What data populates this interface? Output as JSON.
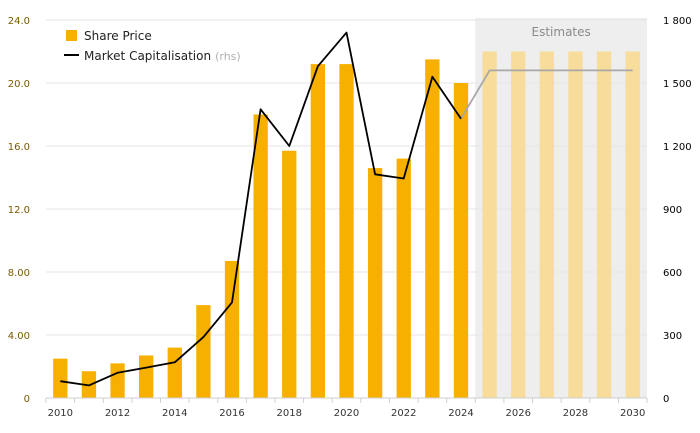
{
  "chart_data": {
    "type": "bar",
    "x": [
      2010,
      2011,
      2012,
      2013,
      2014,
      2015,
      2016,
      2017,
      2018,
      2019,
      2020,
      2021,
      2022,
      2023,
      2024,
      2025,
      2026,
      2027,
      2028,
      2029,
      2030
    ],
    "x_tick_labels": [
      "2010",
      "2012",
      "2014",
      "2016",
      "2018",
      "2020",
      "2022",
      "2024",
      "2026",
      "2028",
      "2030"
    ],
    "series": [
      {
        "name": "Share Price",
        "type": "bar",
        "axis": "left",
        "values": [
          2.5,
          1.7,
          2.2,
          2.7,
          3.2,
          5.9,
          8.7,
          18.0,
          15.7,
          21.2,
          21.2,
          14.6,
          15.2,
          21.5,
          20.0,
          22.0,
          22.0,
          22.0,
          22.0,
          22.0,
          22.0
        ]
      },
      {
        "name": "Market Capitalisation",
        "name_suffix": "(rhs)",
        "type": "line",
        "axis": "right",
        "values": [
          80,
          60,
          120,
          145,
          170,
          290,
          455,
          1375,
          1200,
          1580,
          1740,
          1065,
          1045,
          1530,
          1330,
          1560,
          1560,
          1560,
          1560,
          1560,
          1560
        ]
      }
    ],
    "estimates": {
      "label": "Estimates",
      "from_index": 15
    },
    "y_left": {
      "ylim": [
        0,
        24
      ],
      "ticks": [
        "0",
        "4.00",
        "8.00",
        "12.0",
        "16.0",
        "20.0",
        "24.0"
      ]
    },
    "y_right": {
      "ylim": [
        0,
        1800
      ],
      "ticks": [
        "0",
        "300",
        "600",
        "900",
        "1 200",
        "1 500",
        "1 800"
      ]
    },
    "grid": true,
    "legend_position": "top-left",
    "colors": {
      "bar": "#f7b000",
      "bar_estimate": "#f7dc9b",
      "line": "#000000",
      "line_estimate": "#a8a8a8",
      "estimate_band": "#eeeeee",
      "grid": "#e6e6e6"
    }
  }
}
